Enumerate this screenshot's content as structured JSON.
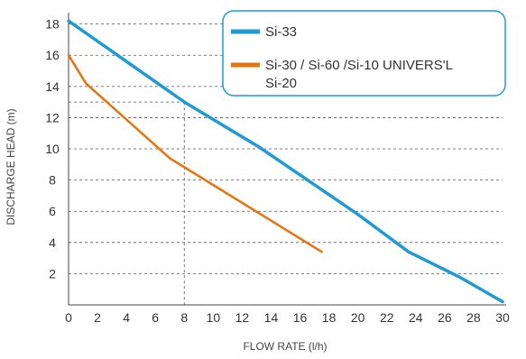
{
  "chart_data": {
    "type": "line",
    "xlabel": "FLOW RATE (l/h)",
    "ylabel": "DISCHARGE HEAD (m)",
    "xlim": [
      0,
      30
    ],
    "ylim": [
      0,
      18.5
    ],
    "x_ticks": [
      "0",
      "2",
      "4",
      "6",
      "8",
      "10",
      "12",
      "14",
      "16",
      "18",
      "20",
      "22",
      "24",
      "26",
      "28",
      "30"
    ],
    "y_ticks": [
      "2",
      "4",
      "6",
      "8",
      "10",
      "12",
      "14",
      "16",
      "18"
    ],
    "grid": "horizontal dashed",
    "legend_position": "top-right",
    "reference_lines": {
      "x": 8,
      "y": 13
    },
    "series": [
      {
        "name": "Si-33",
        "color": "#1e9bd7",
        "points": [
          [
            0,
            18.2
          ],
          [
            8,
            13
          ],
          [
            13.2,
            10.1
          ],
          [
            20,
            5.8
          ],
          [
            23.5,
            3.4
          ],
          [
            27,
            1.8
          ],
          [
            30,
            0.2
          ]
        ]
      },
      {
        "name": "Si-30 / Si-60 /Si-10 UNIVERS'L Si-20",
        "color": "#e8720c",
        "points": [
          [
            0,
            16
          ],
          [
            1.2,
            14.2
          ],
          [
            7,
            9.4
          ],
          [
            10.5,
            7.4
          ],
          [
            17.5,
            3.4
          ]
        ]
      }
    ]
  }
}
